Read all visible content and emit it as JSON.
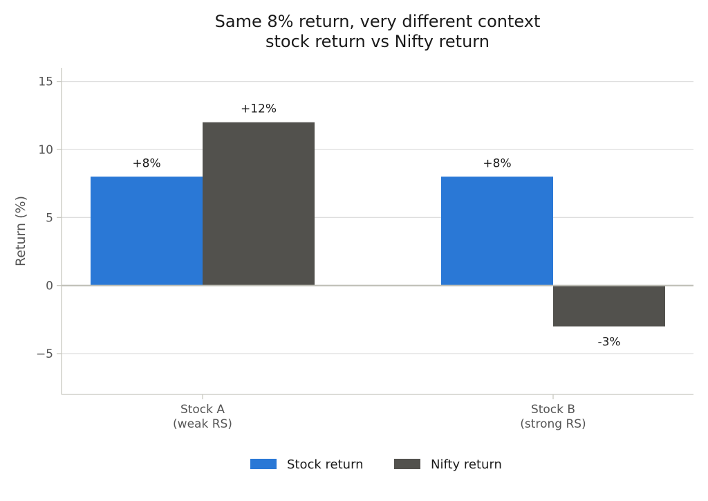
{
  "chart_data": {
    "type": "bar",
    "title": [
      "Same 8% return, very different context",
      "stock return vs Nifty return"
    ],
    "ylabel": "Return (%)",
    "xlabel": "",
    "ylim": [
      -8,
      16
    ],
    "yticks": [
      -5,
      0,
      5,
      10,
      15
    ],
    "ytick_labels": [
      "−5",
      "0",
      "5",
      "10",
      "15"
    ],
    "categories": [
      [
        "Stock A",
        "(weak RS)"
      ],
      [
        "Stock B",
        "(strong RS)"
      ]
    ],
    "series": [
      {
        "name": "Stock return",
        "color": "#2a78d6",
        "values": [
          8,
          8
        ],
        "labels": [
          "+8%",
          "+8%"
        ]
      },
      {
        "name": "Nifty return",
        "color": "#52514d",
        "values": [
          12,
          -3
        ],
        "labels": [
          "+12%",
          "-3%"
        ]
      }
    ],
    "grid": "horizontal",
    "legend_position": "bottom-center"
  }
}
